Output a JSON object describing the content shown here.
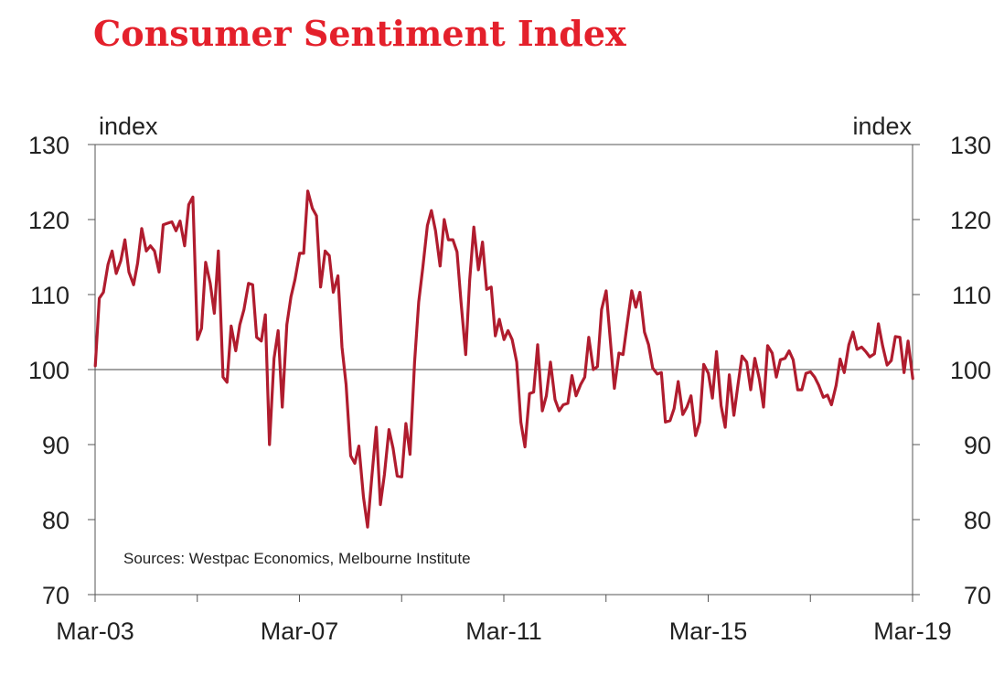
{
  "chart_data": {
    "type": "line",
    "title": "Consumer Sentiment Index",
    "ylabel_left": "index",
    "ylabel_right": "index",
    "ylim": [
      70,
      130
    ],
    "yticks": [
      70,
      80,
      90,
      100,
      110,
      120,
      130
    ],
    "xlim": [
      2003.167,
      2019.167
    ],
    "xticks": [
      {
        "label": "Mar-03",
        "x": 2003.167
      },
      {
        "label": "Mar-07",
        "x": 2007.167
      },
      {
        "label": "Mar-11",
        "x": 2011.167
      },
      {
        "label": "Mar-15",
        "x": 2015.167
      },
      {
        "label": "Mar-19",
        "x": 2019.167
      }
    ],
    "minor_xticks": [
      2005.167,
      2009.167,
      2013.167,
      2017.167
    ],
    "reference_line": 100,
    "source": "Sources: Westpac Economics, Melbourne Institute",
    "line_color": "#b01c2e",
    "title_color": "#e4202b",
    "series": [
      {
        "name": "Consumer Sentiment Index",
        "x": [
          2003.17,
          2003.25,
          2003.33,
          2003.42,
          2003.5,
          2003.58,
          2003.67,
          2003.75,
          2003.83,
          2003.92,
          2004.0,
          2004.08,
          2004.17,
          2004.25,
          2004.33,
          2004.42,
          2004.5,
          2004.58,
          2004.67,
          2004.75,
          2004.83,
          2004.92,
          2005.0,
          2005.08,
          2005.17,
          2005.25,
          2005.33,
          2005.42,
          2005.5,
          2005.58,
          2005.67,
          2005.75,
          2005.83,
          2005.92,
          2006.0,
          2006.08,
          2006.17,
          2006.25,
          2006.33,
          2006.42,
          2006.5,
          2006.58,
          2006.67,
          2006.75,
          2006.83,
          2006.92,
          2007.0,
          2007.08,
          2007.17,
          2007.25,
          2007.33,
          2007.42,
          2007.5,
          2007.58,
          2007.67,
          2007.75,
          2007.83,
          2007.92,
          2008.0,
          2008.08,
          2008.17,
          2008.25,
          2008.33,
          2008.42,
          2008.5,
          2008.58,
          2008.67,
          2008.75,
          2008.83,
          2008.92,
          2009.0,
          2009.08,
          2009.17,
          2009.25,
          2009.33,
          2009.42,
          2009.5,
          2009.58,
          2009.67,
          2009.75,
          2009.83,
          2009.92,
          2010.0,
          2010.08,
          2010.17,
          2010.25,
          2010.33,
          2010.42,
          2010.5,
          2010.58,
          2010.67,
          2010.75,
          2010.83,
          2010.92,
          2011.0,
          2011.08,
          2011.17,
          2011.25,
          2011.33,
          2011.42,
          2011.5,
          2011.58,
          2011.67,
          2011.75,
          2011.83,
          2011.92,
          2012.0,
          2012.08,
          2012.17,
          2012.25,
          2012.33,
          2012.42,
          2012.5,
          2012.58,
          2012.67,
          2012.75,
          2012.83,
          2012.92,
          2013.0,
          2013.08,
          2013.17,
          2013.25,
          2013.33,
          2013.42,
          2013.5,
          2013.58,
          2013.67,
          2013.75,
          2013.83,
          2013.92,
          2014.0,
          2014.08,
          2014.17,
          2014.25,
          2014.33,
          2014.42,
          2014.5,
          2014.58,
          2014.67,
          2014.75,
          2014.83,
          2014.92,
          2015.0,
          2015.08,
          2015.17,
          2015.25,
          2015.33,
          2015.42,
          2015.5,
          2015.58,
          2015.67,
          2015.75,
          2015.83,
          2015.92,
          2016.0,
          2016.08,
          2016.17,
          2016.25,
          2016.33,
          2016.42,
          2016.5,
          2016.58,
          2016.67,
          2016.75,
          2016.83,
          2016.92,
          2017.0,
          2017.08,
          2017.17,
          2017.25,
          2017.33,
          2017.42,
          2017.5,
          2017.58,
          2017.67,
          2017.75,
          2017.83,
          2017.92,
          2018.0,
          2018.08,
          2018.17,
          2018.25,
          2018.33,
          2018.42,
          2018.5,
          2018.58,
          2018.67,
          2018.75,
          2018.83,
          2018.92,
          2019.0,
          2019.08,
          2019.17
        ],
        "values": [
          100.5,
          109.5,
          110.3,
          114.0,
          115.8,
          112.8,
          114.5,
          117.3,
          113.0,
          111.3,
          114.2,
          118.8,
          115.8,
          116.5,
          115.8,
          113.0,
          119.3,
          119.5,
          119.7,
          118.5,
          119.8,
          116.5,
          122.0,
          123.0,
          104.0,
          105.5,
          114.3,
          111.5,
          107.5,
          115.8,
          99.0,
          98.3,
          105.8,
          102.5,
          106.0,
          108.0,
          111.5,
          111.3,
          104.3,
          103.8,
          107.3,
          90.0,
          101.5,
          105.2,
          95.0,
          106.0,
          109.7,
          112.0,
          115.5,
          115.5,
          123.8,
          121.5,
          120.5,
          111.0,
          115.8,
          115.2,
          110.3,
          112.5,
          103.0,
          98.0,
          88.5,
          87.5,
          89.8,
          83.0,
          79.0,
          85.5,
          92.3,
          82.0,
          86.0,
          92.0,
          89.5,
          85.8,
          85.7,
          92.8,
          88.7,
          101.0,
          109.0,
          113.5,
          119.2,
          121.2,
          118.5,
          113.8,
          120.0,
          117.3,
          117.3,
          115.7,
          109.0,
          102.0,
          112.0,
          119.0,
          113.3,
          117.0,
          110.7,
          111.0,
          104.5,
          106.7,
          104.0,
          105.2,
          104.0,
          101.0,
          93.0,
          89.7,
          96.8,
          97.0,
          103.3,
          94.5,
          96.5,
          101.0,
          96.0,
          94.5,
          95.3,
          95.5,
          99.2,
          96.5,
          98.0,
          99.0,
          104.3,
          100.0,
          100.4,
          108.0,
          110.5,
          104.0,
          97.5,
          102.2,
          102.0,
          106.0,
          110.5,
          108.3,
          110.3,
          105.0,
          103.3,
          100.2,
          99.4,
          99.6,
          93.0,
          93.2,
          94.8,
          98.4,
          94.0,
          95.0,
          96.5,
          91.2,
          93.0,
          100.7,
          99.5,
          96.2,
          102.4,
          95.2,
          92.3,
          99.3,
          93.9,
          98.0,
          101.8,
          101.0,
          97.3,
          101.5,
          98.7,
          95.0,
          103.2,
          102.2,
          99.0,
          101.3,
          101.5,
          102.5,
          101.3,
          97.3,
          97.3,
          99.5,
          99.7,
          99.0,
          97.9,
          96.3,
          96.6,
          95.3,
          97.9,
          101.4,
          99.6,
          103.3,
          105.0,
          102.7,
          103.0,
          102.4,
          101.7,
          102.1,
          106.1,
          103.2,
          100.6,
          101.2,
          104.4,
          104.3,
          99.6,
          103.8,
          98.8
        ]
      }
    ]
  }
}
